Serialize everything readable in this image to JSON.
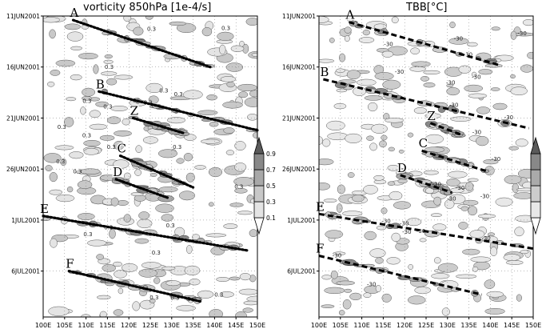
{
  "chart_data": [
    {
      "type": "heatmap",
      "title": "vorticity 850hPa [1e-4/s]",
      "x_ticks": [
        "100E",
        "105E",
        "110E",
        "115E",
        "120E",
        "125E",
        "130E",
        "135E",
        "140E",
        "145E",
        "150E"
      ],
      "x_range": [
        100,
        150
      ],
      "y_ticks": [
        "11JUN2001",
        "16JUN2001",
        "21JUN2001",
        "26JUN2001",
        "1JUL2001",
        "6JUL2001"
      ],
      "y_tick_days": [
        0,
        5,
        10,
        15,
        20,
        25
      ],
      "y_range_days": [
        0,
        29.5
      ],
      "colorbar": {
        "levels": [
          "0.1",
          "0.3",
          "0.5",
          "0.7",
          "0.9"
        ],
        "colors": [
          "#ffffff",
          "#e4e4e4",
          "#c8c8c8",
          "#a8a8a8",
          "#888888",
          "#5a5a5a"
        ]
      },
      "contour_labels": [
        "0.3"
      ],
      "tracks": [
        {
          "label": "A",
          "from": [
            107,
            0.4
          ],
          "to": [
            139,
            5.0
          ],
          "style": "dotted"
        },
        {
          "label": "B",
          "from": [
            113,
            7.4
          ],
          "to": [
            150,
            11.2
          ],
          "style": "dotted"
        },
        {
          "label": "Z",
          "from": [
            121,
            10.0
          ],
          "to": [
            133,
            11.5
          ],
          "style": "dotted"
        },
        {
          "label": "C",
          "from": [
            118,
            13.7
          ],
          "to": [
            135,
            16.8
          ],
          "style": "dotted"
        },
        {
          "label": "D",
          "from": [
            117,
            16.0
          ],
          "to": [
            129,
            17.8
          ],
          "style": "dotted"
        },
        {
          "label": "E",
          "from": [
            100,
            19.6
          ],
          "to": [
            148,
            23.0
          ],
          "style": "dotted"
        },
        {
          "label": "F",
          "from": [
            106,
            25.0
          ],
          "to": [
            137,
            28.0
          ],
          "style": "dotted"
        }
      ]
    },
    {
      "type": "heatmap",
      "title": "TBB[°C]",
      "x_ticks": [
        "100E",
        "105E",
        "110E",
        "115E",
        "120E",
        "125E",
        "130E",
        "135E",
        "140E",
        "145E",
        "150E"
      ],
      "x_range": [
        100,
        150
      ],
      "y_ticks": [
        "11JUN2001",
        "16JUN2001",
        "21JUN2001",
        "26JUN2001",
        "1JUL2001",
        "6JUL2001"
      ],
      "y_tick_days": [
        0,
        5,
        10,
        15,
        20,
        25
      ],
      "y_range_days": [
        0,
        29.5
      ],
      "colorbar": {
        "levels": [],
        "colors": [
          "#ffffff",
          "#e8e8e8",
          "#cccccc",
          "#aaaaaa",
          "#888888",
          "#5a5a5a"
        ]
      },
      "contour_labels": [
        "-30"
      ],
      "tracks": [
        {
          "label": "A",
          "from": [
            107,
            0.6
          ],
          "to": [
            142,
            4.8
          ],
          "style": "dashed"
        },
        {
          "label": "B",
          "from": [
            101,
            6.2
          ],
          "to": [
            149,
            11.0
          ],
          "style": "dashed"
        },
        {
          "label": "Z",
          "from": [
            126,
            10.5
          ],
          "to": [
            133,
            11.6
          ],
          "style": "dashed"
        },
        {
          "label": "C",
          "from": [
            124,
            13.2
          ],
          "to": [
            139,
            15.2
          ],
          "style": "dashed"
        },
        {
          "label": "D",
          "from": [
            119,
            15.6
          ],
          "to": [
            131,
            17.3
          ],
          "style": "dashed"
        },
        {
          "label": "E",
          "from": [
            100,
            19.4
          ],
          "to": [
            150,
            22.8
          ],
          "style": "dashed"
        },
        {
          "label": "F",
          "from": [
            100,
            23.5
          ],
          "to": [
            138,
            27.3
          ],
          "style": "dashed"
        }
      ]
    }
  ]
}
